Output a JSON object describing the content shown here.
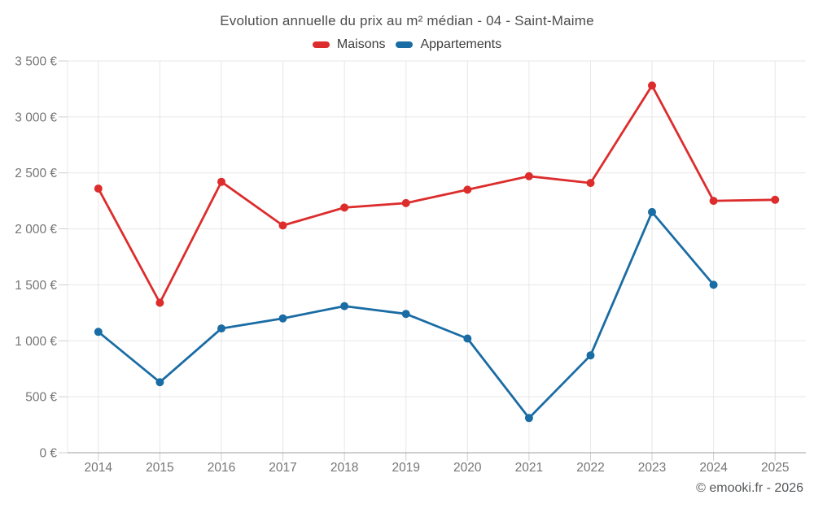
{
  "page": {
    "footer": "© emooki.fr - 2026",
    "background": "#ffffff"
  },
  "chart_data": {
    "type": "line",
    "title": "Evolution annuelle du prix au m² médian - 04 - Saint-Maime",
    "x": [
      "2014",
      "2015",
      "2016",
      "2017",
      "2018",
      "2019",
      "2020",
      "2021",
      "2022",
      "2023",
      "2024",
      "2025"
    ],
    "series": [
      {
        "name": "Maisons",
        "color": "#dd2c2c",
        "values": [
          2360,
          1340,
          2420,
          2030,
          2190,
          2230,
          2350,
          2470,
          2410,
          3280,
          2250,
          2260
        ]
      },
      {
        "name": "Appartements",
        "color": "#1a6ca4",
        "values": [
          1080,
          630,
          1110,
          1200,
          1310,
          1240,
          1020,
          310,
          870,
          2150,
          1500,
          null
        ]
      }
    ],
    "xlabel": "",
    "ylabel": "",
    "ylim": [
      0,
      3500
    ],
    "ytick_step": 500,
    "ytick_labels": [
      "0 €",
      "500 €",
      "1 000 €",
      "1 500 €",
      "2 000 €",
      "2 500 €",
      "3 000 €",
      "3 500 €"
    ],
    "grid": true,
    "legend_position": "top",
    "marker": "circle"
  },
  "colors": {
    "grid": "#e7e7e7",
    "axis_line": "#9f9f9f",
    "tick": "#cfcfcf",
    "axis_label": "#757575",
    "title": "#4d4d4d",
    "legend_label": "#3d3d3d",
    "footer": "#55585b"
  }
}
